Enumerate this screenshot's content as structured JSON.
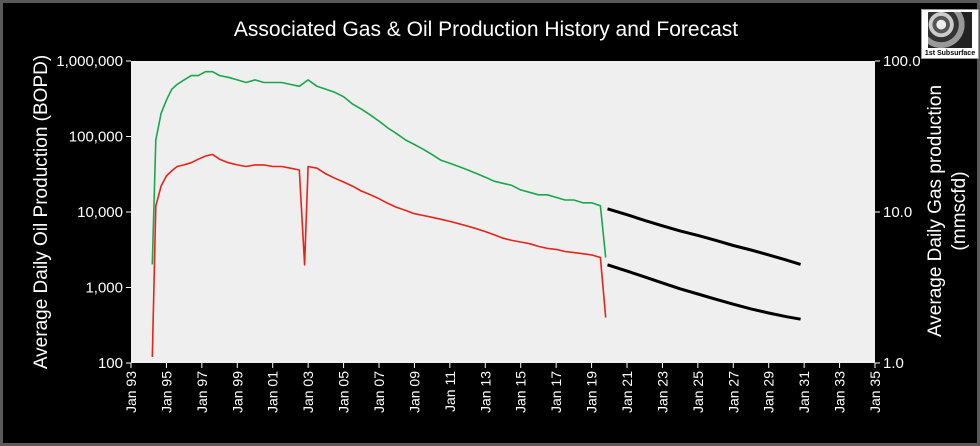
{
  "chart_data": {
    "type": "line",
    "title": "Associated Gas & Oil Production History and Forecast",
    "ylabel": "Average Daily Oil Production (BOPD)",
    "y2label": [
      "Average Daily Gas production",
      "(mmscfd)"
    ],
    "y_scale": "log",
    "ylim": [
      100,
      1000000
    ],
    "y2lim": [
      1.0,
      100.0
    ],
    "y_ticks": [
      {
        "value": 100,
        "label": "100"
      },
      {
        "value": 1000,
        "label": "1,000"
      },
      {
        "value": 10000,
        "label": "10,000"
      },
      {
        "value": 100000,
        "label": "100,000"
      },
      {
        "value": 1000000,
        "label": "1,000,000"
      }
    ],
    "y2_ticks": [
      {
        "value": 1,
        "label": "1.0"
      },
      {
        "value": 10,
        "label": "10.0"
      },
      {
        "value": 100,
        "label": "100.0"
      }
    ],
    "xlim": [
      1993,
      2035
    ],
    "x_ticks": [
      "Jan 93",
      "Jan 95",
      "Jan 97",
      "Jan 99",
      "Jan 01",
      "Jan 03",
      "Jan 05",
      "Jan 07",
      "Jan 09",
      "Jan 11",
      "Jan 13",
      "Jan 15",
      "Jan 17",
      "Jan 19",
      "Jan 21",
      "Jan 23",
      "Jan 25",
      "Jan 27",
      "Jan 29",
      "Jan 31",
      "Jan 33",
      "Jan 35"
    ],
    "grid": false,
    "legend": "none",
    "series": [
      {
        "color": "#1aa64a",
        "axis": "y2",
        "x": [
          1994.2,
          1994.4,
          1994.7,
          1995.0,
          1995.3,
          1995.6,
          1996.0,
          1996.4,
          1996.8,
          1997.2,
          1997.6,
          1998.0,
          1998.5,
          1999.0,
          1999.5,
          2000.0,
          2000.5,
          2001.0,
          2001.5,
          2002.0,
          2002.5,
          2003.0,
          2003.5,
          2004.0,
          2004.5,
          2005.0,
          2005.5,
          2006.0,
          2006.5,
          2007.0,
          2007.5,
          2008.0,
          2008.5,
          2009.0,
          2009.5,
          2010.0,
          2010.5,
          2011.0,
          2011.5,
          2012.0,
          2012.5,
          2013.0,
          2013.5,
          2014.0,
          2014.5,
          2015.0,
          2015.5,
          2016.0,
          2016.5,
          2017.0,
          2017.5,
          2018.0,
          2018.5,
          2019.0,
          2019.5,
          2019.8
        ],
        "y": [
          4.5,
          30,
          45,
          55,
          65,
          70,
          75,
          80,
          80,
          85,
          85,
          80,
          78,
          75,
          72,
          75,
          72,
          72,
          72,
          70,
          68,
          75,
          68,
          65,
          62,
          58,
          52,
          48,
          44,
          40,
          36,
          33,
          30,
          28,
          26,
          24,
          22,
          21,
          20,
          19,
          18,
          17,
          16,
          15.5,
          15,
          14,
          13.5,
          13,
          13,
          12.5,
          12,
          12,
          11.5,
          11.5,
          11,
          5
        ]
      },
      {
        "color": "#e8231a",
        "axis": "y",
        "x": [
          1994.2,
          1994.4,
          1994.7,
          1995.0,
          1995.3,
          1995.6,
          1996.0,
          1996.4,
          1996.8,
          1997.2,
          1997.6,
          1998.0,
          1998.5,
          1999.0,
          1999.5,
          2000.0,
          2000.5,
          2001.0,
          2001.5,
          2002.0,
          2002.5,
          2002.8,
          2003.0,
          2003.5,
          2004.0,
          2004.5,
          2005.0,
          2005.5,
          2006.0,
          2006.5,
          2007.0,
          2007.5,
          2008.0,
          2008.5,
          2009.0,
          2009.5,
          2010.0,
          2010.5,
          2011.0,
          2011.5,
          2012.0,
          2012.5,
          2013.0,
          2013.5,
          2014.0,
          2014.5,
          2015.0,
          2015.5,
          2016.0,
          2016.5,
          2017.0,
          2017.5,
          2018.0,
          2018.5,
          2019.0,
          2019.5,
          2019.8
        ],
        "y": [
          120,
          12000,
          22000,
          30000,
          35000,
          40000,
          42000,
          45000,
          50000,
          55000,
          58000,
          50000,
          45000,
          42000,
          40000,
          42000,
          42000,
          40000,
          40000,
          38000,
          36000,
          2000,
          40000,
          38000,
          32000,
          28000,
          25000,
          22000,
          19000,
          17000,
          15000,
          13000,
          11500,
          10500,
          9500,
          9000,
          8500,
          8000,
          7500,
          7000,
          6500,
          6000,
          5500,
          5000,
          4500,
          4200,
          4000,
          3800,
          3500,
          3300,
          3200,
          3000,
          2900,
          2800,
          2700,
          2500,
          400
        ]
      },
      {
        "color": "#000000",
        "axis": "y2",
        "x": [
          2019.9,
          2021,
          2022,
          2023,
          2024,
          2025,
          2026,
          2027,
          2028,
          2029,
          2030,
          2030.8
        ],
        "y": [
          10.5,
          9.6,
          8.8,
          8.1,
          7.5,
          7.0,
          6.5,
          6.0,
          5.6,
          5.2,
          4.8,
          4.5
        ]
      },
      {
        "color": "#000000",
        "axis": "y",
        "x": [
          2019.9,
          2021,
          2022,
          2023,
          2024,
          2025,
          2026,
          2027,
          2028,
          2029,
          2030,
          2030.8
        ],
        "y": [
          2000,
          1650,
          1380,
          1150,
          960,
          820,
          700,
          600,
          520,
          460,
          410,
          380
        ]
      }
    ]
  },
  "logo": {
    "text": "1st Subsurface"
  }
}
